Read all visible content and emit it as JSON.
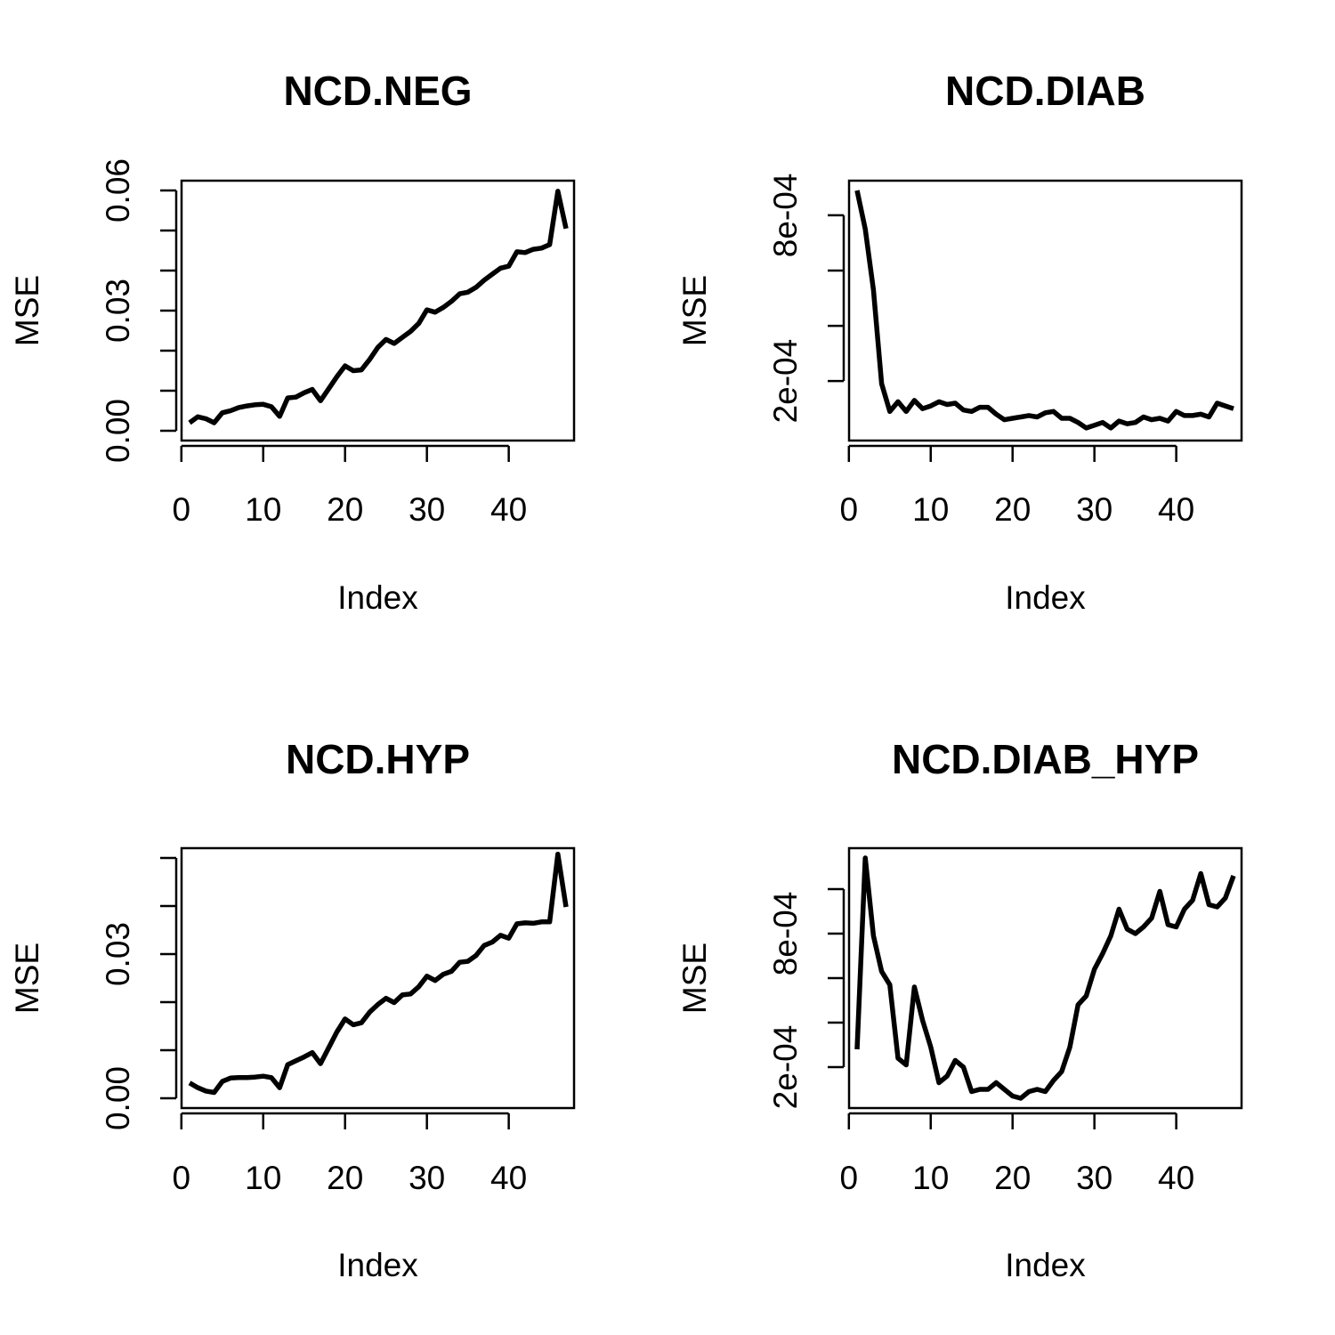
{
  "chart_data": [
    {
      "type": "line",
      "title": "NCD.NEG",
      "xlabel": "Index",
      "ylabel": "MSE",
      "xlim": [
        1,
        47
      ],
      "ylim": [
        0.0,
        0.06
      ],
      "xticks": [
        0,
        10,
        20,
        30,
        40
      ],
      "xtick_labels": [
        "0",
        "10",
        "20",
        "30",
        "40"
      ],
      "yticks": [
        0.0,
        0.01,
        0.02,
        0.03,
        0.04,
        0.05,
        0.06
      ],
      "ytick_labels": [
        "0.00",
        "",
        "",
        "0.03",
        "",
        "",
        "0.06"
      ],
      "grid": false,
      "series": [
        {
          "x": [
            1,
            2,
            3,
            4,
            5,
            6,
            7,
            8,
            9,
            10,
            11,
            12,
            13,
            14,
            15,
            16,
            17,
            18,
            19,
            20,
            21,
            22,
            23,
            24,
            25,
            26,
            27,
            28,
            29,
            30,
            31,
            32,
            33,
            34,
            35,
            36,
            37,
            38,
            39,
            40,
            41,
            42,
            43,
            44,
            45,
            46,
            47
          ],
          "y": [
            0.002,
            0.0035,
            0.003,
            0.002,
            0.0045,
            0.005,
            0.0058,
            0.0062,
            0.0065,
            0.0066,
            0.006,
            0.0036,
            0.0082,
            0.0084,
            0.0095,
            0.0103,
            0.0075,
            0.0105,
            0.0135,
            0.0162,
            0.015,
            0.0152,
            0.0178,
            0.0208,
            0.0228,
            0.0218,
            0.0233,
            0.0248,
            0.0268,
            0.0302,
            0.0296,
            0.0308,
            0.0323,
            0.0342,
            0.0346,
            0.0358,
            0.0376,
            0.0391,
            0.0406,
            0.0411,
            0.0447,
            0.0445,
            0.0453,
            0.0456,
            0.0465,
            0.0598,
            0.0505
          ]
        }
      ]
    },
    {
      "type": "line",
      "title": "NCD.DIAB",
      "xlabel": "Index",
      "ylabel": "MSE",
      "xlim": [
        1,
        47
      ],
      "ylim": [
        2e-05,
        0.00089
      ],
      "xticks": [
        0,
        10,
        20,
        30,
        40
      ],
      "xtick_labels": [
        "0",
        "10",
        "20",
        "30",
        "40"
      ],
      "yticks": [
        0.0002,
        0.0004,
        0.0006,
        0.0008
      ],
      "ytick_labels": [
        "2e-04",
        "",
        "",
        "8e-04"
      ],
      "grid": false,
      "series": [
        {
          "x": [
            1,
            2,
            3,
            4,
            5,
            6,
            7,
            8,
            9,
            10,
            11,
            12,
            13,
            14,
            15,
            16,
            17,
            18,
            19,
            20,
            21,
            22,
            23,
            24,
            25,
            26,
            27,
            28,
            29,
            30,
            31,
            32,
            33,
            34,
            35,
            36,
            37,
            38,
            39,
            40,
            41,
            42,
            43,
            44,
            45,
            46,
            47
          ],
          "y": [
            0.00089,
            0.00075,
            0.00053,
            0.00019,
            9e-05,
            0.000125,
            9e-05,
            0.00013,
            0.0001,
            0.00011,
            0.000125,
            0.000115,
            0.00012,
            9.5e-05,
            9e-05,
            0.000105,
            0.000105,
            8e-05,
            6e-05,
            6.5e-05,
            7e-05,
            7.5e-05,
            7e-05,
            8.5e-05,
            9e-05,
            6.5e-05,
            6.5e-05,
            5e-05,
            3e-05,
            4e-05,
            5e-05,
            3e-05,
            5.5e-05,
            4.5e-05,
            5e-05,
            7e-05,
            6e-05,
            6.5e-05,
            5.5e-05,
            9e-05,
            7.5e-05,
            7.5e-05,
            8e-05,
            7e-05,
            0.00012,
            0.00011,
            0.0001
          ]
        }
      ]
    },
    {
      "type": "line",
      "title": "NCD.HYP",
      "xlabel": "Index",
      "ylabel": "MSE",
      "xlim": [
        1,
        47
      ],
      "ylim": [
        0.0,
        0.05
      ],
      "xticks": [
        0,
        10,
        20,
        30,
        40
      ],
      "xtick_labels": [
        "0",
        "10",
        "20",
        "30",
        "40"
      ],
      "yticks": [
        0.0,
        0.01,
        0.02,
        0.03,
        0.04,
        0.05
      ],
      "ytick_labels": [
        "0.00",
        "",
        "",
        "0.03",
        "",
        ""
      ],
      "grid": false,
      "series": [
        {
          "x": [
            1,
            2,
            3,
            4,
            5,
            6,
            7,
            8,
            9,
            10,
            11,
            12,
            13,
            14,
            15,
            16,
            17,
            18,
            19,
            20,
            21,
            22,
            23,
            24,
            25,
            26,
            27,
            28,
            29,
            30,
            31,
            32,
            33,
            34,
            35,
            36,
            37,
            38,
            39,
            40,
            41,
            42,
            43,
            44,
            45,
            46,
            47
          ],
          "y": [
            0.0032,
            0.0022,
            0.0015,
            0.0012,
            0.0035,
            0.0042,
            0.0043,
            0.0043,
            0.0044,
            0.0046,
            0.0043,
            0.0022,
            0.007,
            0.0078,
            0.0086,
            0.0095,
            0.0072,
            0.0105,
            0.0138,
            0.0165,
            0.0153,
            0.0157,
            0.0179,
            0.0195,
            0.0208,
            0.0199,
            0.0215,
            0.0217,
            0.0232,
            0.0254,
            0.0245,
            0.0258,
            0.0264,
            0.0283,
            0.0285,
            0.0297,
            0.0318,
            0.0325,
            0.0339,
            0.0333,
            0.0363,
            0.0365,
            0.0364,
            0.0367,
            0.0367,
            0.0508,
            0.0398
          ]
        }
      ]
    },
    {
      "type": "line",
      "title": "NCD.DIAB_HYP",
      "xlabel": "Index",
      "ylabel": "MSE",
      "xlim": [
        1,
        47
      ],
      "ylim": [
        6e-05,
        0.00114
      ],
      "xticks": [
        0,
        10,
        20,
        30,
        40
      ],
      "xtick_labels": [
        "0",
        "10",
        "20",
        "30",
        "40"
      ],
      "yticks": [
        0.0002,
        0.0004,
        0.0006,
        0.0008,
        0.001
      ],
      "ytick_labels": [
        "2e-04",
        "",
        "",
        "8e-04",
        ""
      ],
      "grid": false,
      "series": [
        {
          "x": [
            1,
            2,
            3,
            4,
            5,
            6,
            7,
            8,
            9,
            10,
            11,
            12,
            13,
            14,
            15,
            16,
            17,
            18,
            19,
            20,
            21,
            22,
            23,
            24,
            25,
            26,
            27,
            28,
            29,
            30,
            31,
            32,
            33,
            34,
            35,
            36,
            37,
            38,
            39,
            40,
            41,
            42,
            43,
            44,
            45,
            46,
            47
          ],
          "y": [
            0.00028,
            0.00114,
            0.00079,
            0.00063,
            0.00057,
            0.00024,
            0.00021,
            0.00056,
            0.00041,
            0.00029,
            0.00013,
            0.00016,
            0.00023,
            0.0002,
            9e-05,
            0.0001,
            0.0001,
            0.00013,
            0.0001,
            7e-05,
            6e-05,
            9e-05,
            0.0001,
            9e-05,
            0.00014,
            0.00018,
            0.00029,
            0.00048,
            0.00052,
            0.00064,
            0.00071,
            0.00079,
            0.00091,
            0.00082,
            0.0008,
            0.00083,
            0.00087,
            0.00099,
            0.00084,
            0.00083,
            0.00091,
            0.00095,
            0.00107,
            0.00093,
            0.00092,
            0.00096,
            0.00106
          ]
        }
      ]
    }
  ]
}
